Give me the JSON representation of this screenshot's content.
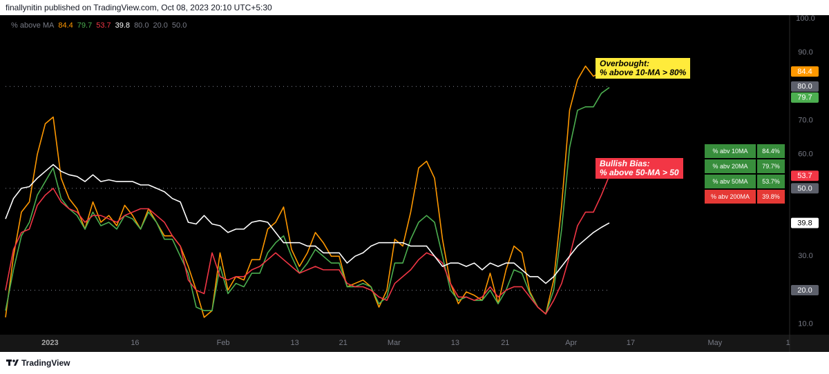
{
  "header": "finallynitin published on TradingView.com, Oct 08, 2023 20:10 UTC+5:30",
  "footer": "TradingView",
  "chart_data": {
    "type": "line",
    "legend_title": "% above MA",
    "x": [
      0,
      1,
      2,
      3,
      4,
      5,
      6,
      7,
      8,
      9,
      10,
      11,
      12,
      13,
      14,
      15,
      16,
      17,
      18,
      19,
      20,
      21,
      22,
      23,
      24,
      25,
      26,
      27,
      28,
      29,
      30,
      31,
      32,
      33,
      34,
      35,
      36,
      37,
      38,
      39,
      40,
      41,
      42,
      43,
      44,
      45,
      46,
      47,
      48,
      49,
      50,
      51,
      52,
      53,
      54,
      55,
      56,
      57,
      58,
      59,
      60,
      61,
      62,
      63,
      64,
      65,
      66,
      67,
      68,
      69,
      70,
      71,
      72,
      73,
      74,
      75,
      76
    ],
    "series": [
      {
        "name": "% abv 10MA",
        "color": "#ff9800",
        "values": [
          12,
          30,
          43,
          46,
          60,
          69,
          71,
          53,
          47,
          44,
          38,
          46,
          40,
          42,
          39,
          45,
          42,
          38,
          44,
          40,
          36,
          36,
          33,
          27,
          20,
          12,
          14,
          31,
          20,
          24,
          23,
          29,
          29,
          38,
          40,
          44.5,
          32,
          27,
          31,
          37,
          34,
          30,
          30,
          21,
          22,
          23,
          21,
          15,
          20,
          35,
          33,
          43,
          56,
          58,
          53,
          35,
          22,
          16,
          19.5,
          18.5,
          17,
          25,
          16,
          26,
          33,
          31,
          19.5,
          15,
          13,
          23,
          45,
          73,
          82,
          86,
          83,
          84.4,
          84.4
        ]
      },
      {
        "name": "% abv 20MA",
        "color": "#4caf50",
        "values": [
          14,
          26,
          36,
          40,
          48,
          52,
          56,
          47,
          44,
          42,
          38,
          43,
          39,
          40,
          38,
          42,
          41,
          38,
          43,
          40,
          35,
          35,
          30,
          25,
          15,
          14,
          14,
          27,
          19,
          22,
          21,
          25,
          25,
          31,
          34,
          36,
          30,
          25,
          28,
          32,
          30,
          28,
          28,
          21,
          21,
          22,
          21,
          16,
          18,
          28,
          28,
          35,
          40,
          42,
          40,
          30,
          20,
          17,
          18,
          17,
          17,
          20,
          16,
          20,
          26,
          25,
          19,
          15,
          13,
          20,
          38,
          62,
          73,
          74,
          74,
          78,
          79.7
        ]
      },
      {
        "name": "% abv 50MA",
        "color": "#f23645",
        "values": [
          20,
          32,
          37,
          38,
          45,
          48,
          50,
          46,
          44,
          43,
          40,
          42,
          42,
          41,
          40,
          42,
          43,
          44,
          44,
          42,
          40,
          36,
          33,
          23,
          20,
          19,
          31,
          24,
          23,
          24,
          24,
          26,
          27,
          29,
          31,
          29,
          27,
          25,
          26,
          27,
          26,
          26,
          26,
          22,
          21,
          21,
          20,
          18,
          17,
          22,
          24,
          26,
          29,
          31,
          30,
          28,
          22,
          18,
          18,
          17,
          18,
          21,
          18,
          20,
          21,
          21,
          18,
          15,
          13,
          17,
          22,
          30,
          39,
          43,
          43,
          48,
          53.7
        ]
      },
      {
        "name": "% abv 200MA",
        "color": "#ffffff",
        "values": [
          41,
          47,
          50,
          50.5,
          53,
          55,
          57,
          55,
          54,
          53.5,
          52,
          54,
          52,
          52.5,
          52,
          52,
          52,
          51,
          51,
          50,
          49,
          47,
          46,
          40,
          39.5,
          42,
          39.5,
          39,
          37,
          38,
          38,
          40,
          40.5,
          40,
          37,
          34,
          34,
          34,
          33,
          33,
          31,
          31,
          31,
          28,
          30,
          31,
          33,
          34,
          34,
          34,
          34,
          33,
          33,
          33,
          30,
          27,
          28,
          28,
          27,
          28,
          26,
          28,
          27,
          28,
          28,
          26,
          24,
          24,
          22,
          24,
          27,
          30,
          33,
          35,
          37,
          38.5,
          39.8
        ]
      }
    ],
    "hlines": [
      {
        "value": 80,
        "label": "80.0"
      },
      {
        "value": 20,
        "label": "20.0"
      },
      {
        "value": 50,
        "label": "50.0"
      }
    ],
    "hline_color": "#787b86",
    "xlim": [
      0,
      98.7
    ],
    "xticks": [
      {
        "value": 5.6,
        "label": "2023"
      },
      {
        "value": 16.3,
        "label": "16"
      },
      {
        "value": 27.4,
        "label": "Feb"
      },
      {
        "value": 36.4,
        "label": "13"
      },
      {
        "value": 42.5,
        "label": "21"
      },
      {
        "value": 48.9,
        "label": "Mar"
      },
      {
        "value": 56.6,
        "label": "13"
      },
      {
        "value": 62.9,
        "label": "21"
      },
      {
        "value": 71.2,
        "label": "Apr"
      },
      {
        "value": 78.7,
        "label": "17"
      },
      {
        "value": 89.3,
        "label": "May"
      },
      {
        "value": 98.5,
        "label": "1"
      }
    ],
    "ylim": [
      6.9,
      101
    ],
    "yticks": [
      {
        "value": 10,
        "label": "10.0"
      },
      {
        "value": 20,
        "label": "20.0"
      },
      {
        "value": 30,
        "label": "30.0"
      },
      {
        "value": 40,
        "label": "40.0"
      },
      {
        "value": 50,
        "label": "50.0"
      },
      {
        "value": 60,
        "label": "60.0"
      },
      {
        "value": 70,
        "label": "70.0"
      },
      {
        "value": 80,
        "label": "80.0"
      },
      {
        "value": 90,
        "label": "90.0"
      },
      {
        "value": 100,
        "label": "100.0"
      }
    ],
    "grid": false,
    "annotations": [
      {
        "lines": [
          "Overbought:",
          "% above 10-MA > 80%"
        ],
        "bg": "#ffeb3b",
        "color": "#000000"
      },
      {
        "lines": [
          "Bullish Bias:",
          "% above 50-MA > 50"
        ],
        "bg": "#f23645",
        "color": "#ffffff"
      }
    ],
    "table": {
      "rows": [
        [
          "% abv 10MA",
          "84.4%"
        ],
        [
          "% abv 20MA",
          "79.7%"
        ],
        [
          "% abv 50MA",
          "53.7%"
        ],
        [
          "% abv 200MA",
          "39.8%"
        ]
      ],
      "row_colors": [
        "#388e3c",
        "#388e3c",
        "#388e3c",
        "#e53935"
      ]
    }
  }
}
